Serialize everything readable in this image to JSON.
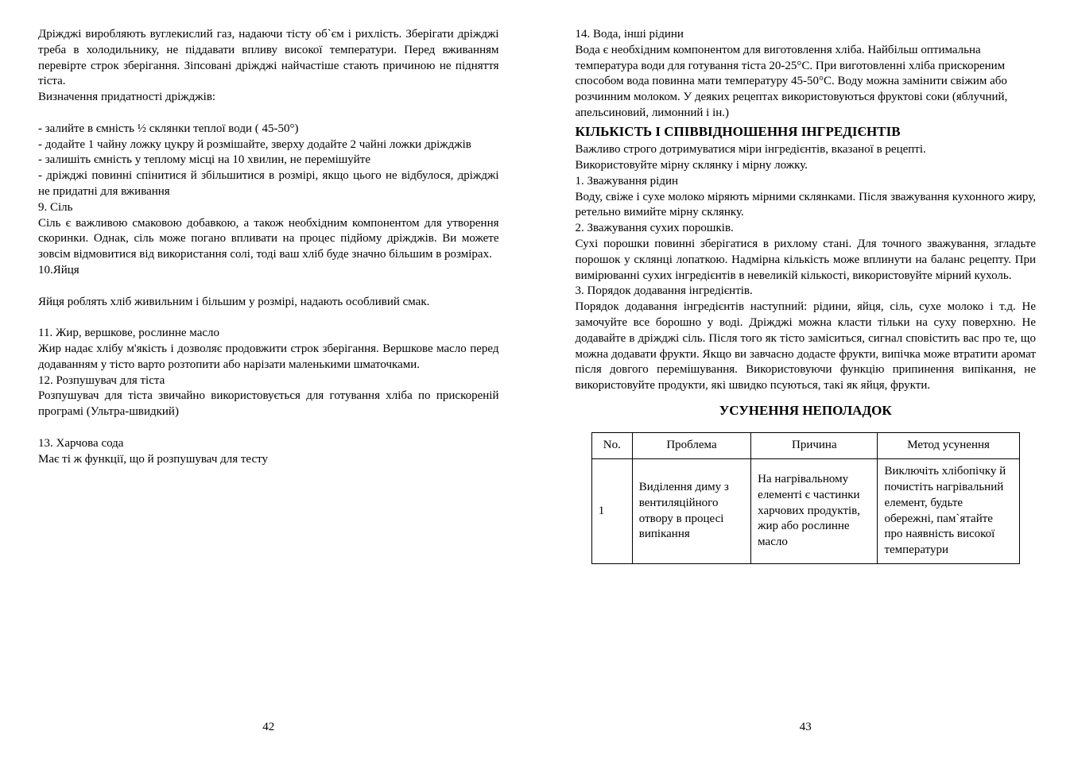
{
  "left": {
    "para1": "Дріжджі виробляють вуглекислий газ, надаючи тісту об`єм і рихлість. Зберігати дріжджі треба в холодильнику, не піддавати впливу високої температури. Перед вживанням перевірте строк зберігання. Зіпсовані дріжджі найчастіше стають причиною не підняття тіста.",
    "para2": "Визначення придатності дріжджів:",
    "step1": "- залийте в  ємність ½ склянки теплої води ( 45-50°)",
    "step2": "- додайте 1 чайну ложку цукру й розмішайте, зверху додайте 2 чайні ложки дріжджів",
    "step3": "- залишіть ємність у теплому місці на 10 хвилин, не перемішуйте",
    "step4": "- дріжджі повинні спінитися й збільшитися в розмірі, якщо цього не відбулося, дріжджі не придатні для вживання",
    "h9": "9.  Сіль",
    "p9": "Сіль є важливою смаковою добавкою, а також необхідним компонентом для утворення скоринки. Однак, сіль може погано впливати на процес підйому дріжджів. Ви можете зовсім відмовитися від використання солі, тоді ваш хліб буде значно більшим в розмірах.",
    "h10": "10.Яйця",
    "p10": "Яйця роблять хліб живильним і більшим у розмірі, надають особливий смак.",
    "h11": "11. Жир, вершкове, рослинне масло",
    "p11": "Жир надає хлібу м'якість і дозволяє продовжити строк зберігання. Вершкове масло перед додаванням у тісто варто розтопити або нарізати маленькими шматочками.",
    "h12": "12.  Розпушувач для тіста",
    "p12": "Розпушувач для тіста звичайно використовується для готування хліба по прискореній програмі (Ультра-швидкий)",
    "h13": "13.  Харчова сода",
    "p13": "Має ті ж функції, що й розпушувач для тесту",
    "pageNumber": "42"
  },
  "right": {
    "h14": "14.  Вода, інші рідини",
    "p14": "Вода є необхідним компонентом для виготовлення хліба. Найбільш оптимальна температура води для готування тіста 20-25°С. При виготовленні хліба прискореним способом вода повинна мати температуру 45-50°С. Воду можна  замінити свіжим або розчинним  молоком.  У  деяких  рецептах  використовуються  фруктові  соки  (яблучний, апельсиновий, лимонний і ін.)",
    "title_ratio": "КІЛЬКІСТЬ І СПІВВІДНОШЕННЯ ІНГРЕДІЄНТІВ",
    "ratio1": "Важливо строго дотримуватися міри інгредієнтів, вказаної в рецепті.",
    "ratio2": "Використовуйте мірну склянку і мірну ложку.",
    "w1h": "1. Зважування рідин",
    "w1": "Воду, свіже і сухе молоко міряють мірними склянками. Після зважування кухонного жиру, ретельно вимийте мірну склянку.",
    "w2h": "2. Зважування сухих порошків.",
    "w2": "Сухі порошки повинні зберігатися в рихлому стані. Для точного зважування, згладьте порошок у склянці лопаткою. Надмірна кількість може вплинути на баланс рецепту. При вимірюванні сухих інгредієнтів в невеликій кількості, використовуйте мірний кухоль.",
    "w3h": "3. Порядок додавання інгредієнтів.",
    "w3": "Порядок додавання інгредієнтів наступний:  рідини, яйця, сіль, сухе молоко і т.д. Не замочуйте все борошно у воді. Дріжджі можна класти тільки на суху поверхню. Не додавайте в дріжджі сіль. Після того як тісто заміситься, сигнал сповістить вас про те, що можна додавати фрукти. Якщо ви завчасно додасте фрукти, випічка може втратити аромат після довгого перемішування. Використовуючи  функцію припинення випікання, не використовуйте продукти, які швидко псуються, такі  як яйця, фрукти.",
    "title_troubleshoot": "УСУНЕННЯ НЕПОЛАДОК",
    "table": {
      "headers": {
        "no": "No.",
        "problem": "Проблема",
        "cause": "Причина",
        "solution": "Метод усунення"
      },
      "row1": {
        "no": "1",
        "problem": "Виділення диму з вентиляційного отвору в процесі випікання",
        "cause": "На нагрівальному елементі є частинки харчових продуктів, жир або рослинне масло",
        "solution": "Виключіть хлібопічку й почистіть нагрівальний елемент, будьте обережні, пам`ятайте про наявність високої температури"
      }
    },
    "pageNumber": "43"
  }
}
